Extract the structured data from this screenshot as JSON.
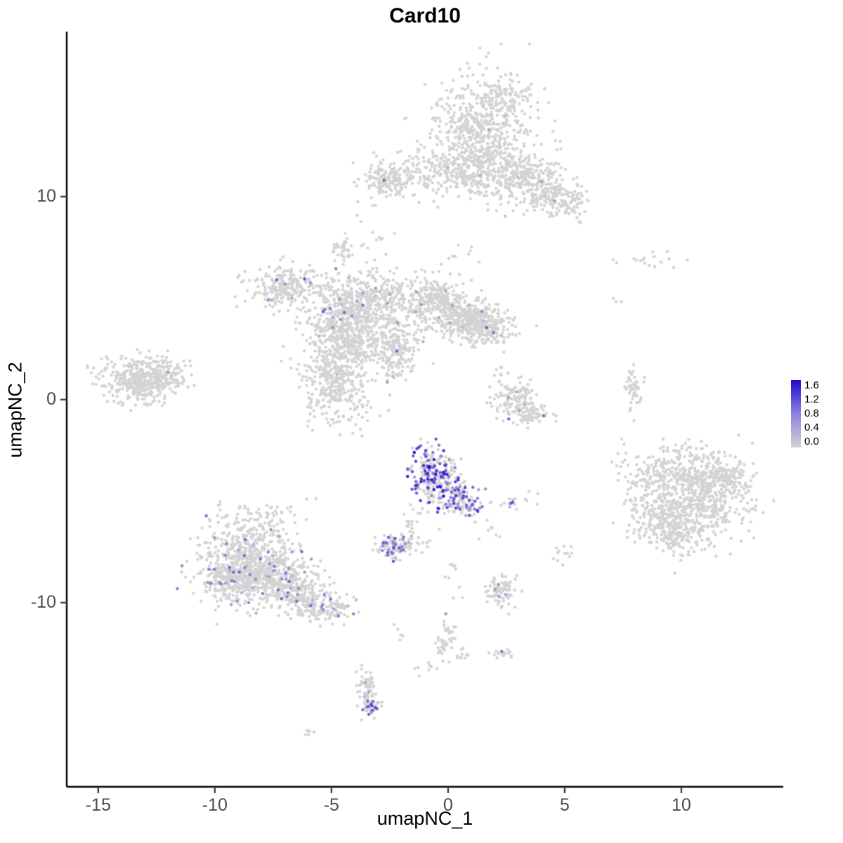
{
  "title": "Card10",
  "chart_data": {
    "type": "scatter",
    "title": "Card10",
    "xlabel": "umapNC_1",
    "ylabel": "umapNC_2",
    "xlim": [
      -16.35,
      14.37
    ],
    "ylim": [
      -19.07,
      18.13
    ],
    "x_ticks": [
      -15,
      -10,
      -5,
      0,
      5,
      10
    ],
    "y_ticks": [
      10,
      0,
      -10
    ],
    "grid": false,
    "legend": {
      "position": "right",
      "min": 0.0,
      "max": 1.6,
      "ticks": [
        1.6,
        1.2,
        0.8,
        0.4,
        0.0
      ],
      "low_color": "#d3d3d3",
      "high_color": "#2209cf"
    },
    "point_radius_px": 2.2,
    "seed": 7,
    "clusters_format": [
      "n",
      "cx",
      "cy",
      "sx",
      "sy",
      "expr_frac",
      "expr_max"
    ],
    "clusters": [
      [
        600,
        1.6,
        13.3,
        1.05,
        1.25,
        0.004,
        0.5
      ],
      [
        350,
        0.6,
        11.2,
        1.55,
        0.55,
        0.004,
        0.5
      ],
      [
        150,
        -2.55,
        10.9,
        0.5,
        0.45,
        0,
        0
      ],
      [
        200,
        3.3,
        10.8,
        0.8,
        0.65,
        0.004,
        0.4
      ],
      [
        120,
        4.4,
        10.0,
        0.5,
        0.55,
        0.008,
        0.4
      ],
      [
        60,
        5.3,
        9.6,
        0.45,
        0.4,
        0,
        0
      ],
      [
        60,
        2.6,
        14.9,
        0.55,
        0.35,
        0,
        0
      ],
      [
        250,
        -6.8,
        5.6,
        0.85,
        0.5,
        0.02,
        0.6
      ],
      [
        300,
        -4.6,
        4.3,
        0.7,
        0.75,
        0.03,
        0.7
      ],
      [
        350,
        -3.0,
        4.8,
        0.85,
        0.85,
        0.02,
        0.6
      ],
      [
        300,
        -0.6,
        4.8,
        0.7,
        0.6,
        0.02,
        0.6
      ],
      [
        250,
        0.8,
        4.0,
        0.5,
        0.5,
        0.015,
        0.5
      ],
      [
        200,
        1.7,
        3.6,
        0.55,
        0.45,
        0.01,
        0.5
      ],
      [
        350,
        -4.9,
        0.9,
        0.8,
        1.0,
        0.003,
        0.4
      ],
      [
        250,
        -4.2,
        2.6,
        0.7,
        0.7,
        0.01,
        0.5
      ],
      [
        120,
        -2.3,
        2.7,
        0.5,
        0.55,
        0.01,
        0.5
      ],
      [
        80,
        -2.2,
        2.0,
        0.45,
        0.65,
        0,
        0
      ],
      [
        40,
        -4.5,
        7.4,
        0.25,
        0.3,
        0,
        0
      ],
      [
        400,
        -13.2,
        1.0,
        0.8,
        0.55,
        0,
        0
      ],
      [
        60,
        -11.9,
        1.2,
        0.45,
        0.3,
        0,
        0
      ],
      [
        50,
        7.95,
        0.4,
        0.18,
        0.55,
        0,
        0
      ],
      [
        18,
        8.6,
        6.8,
        1.0,
        0.25,
        0,
        0
      ],
      [
        3,
        7.4,
        4.8,
        0.15,
        0.15,
        0,
        0
      ],
      [
        130,
        2.9,
        -0.1,
        0.5,
        0.5,
        0.02,
        0.5
      ],
      [
        60,
        3.7,
        -0.75,
        0.45,
        0.28,
        0.02,
        0.5
      ],
      [
        12,
        2.2,
        1.2,
        0.3,
        0.5,
        0,
        0
      ],
      [
        260,
        -0.55,
        -3.8,
        0.5,
        0.75,
        0.38,
        1.5
      ],
      [
        80,
        0.45,
        -4.9,
        0.35,
        0.4,
        0.3,
        1.2
      ],
      [
        40,
        1.0,
        -5.3,
        0.3,
        0.35,
        0.25,
        1.2
      ],
      [
        12,
        2.7,
        -5.1,
        0.2,
        0.15,
        0.2,
        1.0
      ],
      [
        20,
        -1.6,
        -6.1,
        0.2,
        0.4,
        0.05,
        0.6
      ],
      [
        100,
        -2.35,
        -7.2,
        0.4,
        0.3,
        0.28,
        1.1
      ],
      [
        12,
        -1.3,
        -7.1,
        0.25,
        0.12,
        0.05,
        0.5
      ],
      [
        90,
        -8.1,
        -5.9,
        1.0,
        0.45,
        0.02,
        0.7
      ],
      [
        450,
        -8.6,
        -7.8,
        1.0,
        0.8,
        0.04,
        0.9
      ],
      [
        320,
        -7.5,
        -8.8,
        0.9,
        0.7,
        0.04,
        0.9
      ],
      [
        220,
        -9.3,
        -9.0,
        0.7,
        0.6,
        0.04,
        0.8
      ],
      [
        160,
        -6.3,
        -9.6,
        0.6,
        0.5,
        0.04,
        0.8
      ],
      [
        110,
        -5.2,
        -10.3,
        0.55,
        0.35,
        0.05,
        0.8
      ],
      [
        500,
        10.6,
        -4.8,
        1.1,
        1.0,
        0,
        0
      ],
      [
        280,
        9.6,
        -6.2,
        0.8,
        0.7,
        0,
        0
      ],
      [
        180,
        11.6,
        -3.8,
        0.7,
        0.6,
        0,
        0
      ],
      [
        120,
        9.4,
        -3.4,
        0.7,
        0.55,
        0,
        0
      ],
      [
        40,
        8.2,
        -4.4,
        0.45,
        0.8,
        0,
        0
      ],
      [
        10,
        7.5,
        -3.0,
        0.3,
        0.6,
        0,
        0
      ],
      [
        80,
        2.25,
        -9.4,
        0.3,
        0.4,
        0.03,
        0.5
      ],
      [
        12,
        5.0,
        -7.5,
        0.3,
        0.4,
        0,
        0
      ],
      [
        45,
        -0.15,
        -11.8,
        0.22,
        0.5,
        0.02,
        0.5
      ],
      [
        10,
        0.55,
        -12.6,
        0.25,
        0.15,
        0,
        0
      ],
      [
        16,
        2.25,
        -12.5,
        0.25,
        0.2,
        0.05,
        0.6
      ],
      [
        50,
        -3.5,
        -14.2,
        0.22,
        0.4,
        0.05,
        0.6
      ],
      [
        45,
        -3.3,
        -15.1,
        0.22,
        0.35,
        0.3,
        1.2
      ],
      [
        6,
        -5.95,
        -16.35,
        0.18,
        0.12,
        0,
        0
      ],
      [
        10,
        -3.0,
        8.5,
        0.5,
        0.5,
        0,
        0
      ],
      [
        8,
        0.5,
        7.3,
        0.4,
        0.35,
        0,
        0
      ],
      [
        10,
        0.2,
        -8.7,
        0.3,
        0.45,
        0,
        0
      ],
      [
        8,
        1.7,
        -6.5,
        0.25,
        0.25,
        0,
        0
      ],
      [
        5,
        3.5,
        -4.6,
        0.2,
        0.3,
        0,
        0
      ],
      [
        8,
        -1.0,
        -13.2,
        0.3,
        0.3,
        0,
        0
      ],
      [
        5,
        -2.2,
        -11.4,
        0.2,
        0.2,
        0,
        0
      ]
    ],
    "highlights_format": [
      "x",
      "y",
      "value"
    ],
    "highlights": [
      [
        -2.75,
        10.8,
        0.9
      ],
      [
        4.55,
        9.8,
        0.45
      ],
      [
        -7.35,
        5.9,
        0.85
      ],
      [
        -7.0,
        5.7,
        0.5
      ],
      [
        -6.15,
        5.95,
        1.0
      ],
      [
        -5.9,
        5.75,
        0.5
      ],
      [
        -7.7,
        4.9,
        0.5
      ],
      [
        -6.7,
        5.0,
        0.4
      ],
      [
        -5.35,
        4.35,
        1.0
      ],
      [
        -5.05,
        4.5,
        0.7
      ],
      [
        -4.45,
        4.3,
        0.9
      ],
      [
        -4.6,
        3.95,
        0.5
      ],
      [
        -3.65,
        4.65,
        0.8
      ],
      [
        -4.95,
        3.55,
        0.6
      ],
      [
        -2.6,
        4.75,
        0.5
      ],
      [
        -1.35,
        5.3,
        0.4
      ],
      [
        -3.1,
        5.5,
        0.45
      ],
      [
        -2.2,
        2.4,
        0.9
      ],
      [
        -0.4,
        4.05,
        0.4
      ],
      [
        1.45,
        4.35,
        0.6
      ],
      [
        1.65,
        3.55,
        1.0
      ],
      [
        1.95,
        3.3,
        0.8
      ],
      [
        -12.0,
        1.35,
        0.5
      ],
      [
        2.6,
        -0.95,
        0.9
      ],
      [
        4.1,
        -0.8,
        0.8
      ],
      [
        3.05,
        -0.55,
        0.4
      ],
      [
        -0.95,
        -2.8,
        1.1
      ],
      [
        -0.6,
        -2.95,
        1.4
      ],
      [
        -0.35,
        -3.15,
        0.9
      ],
      [
        -0.8,
        -3.3,
        1.6
      ],
      [
        -0.5,
        -3.5,
        1.2
      ],
      [
        -0.95,
        -3.65,
        1.0
      ],
      [
        -1.15,
        -3.9,
        1.3
      ],
      [
        -0.7,
        -3.95,
        1.5
      ],
      [
        -0.3,
        -3.8,
        0.8
      ],
      [
        -0.1,
        -3.5,
        1.0
      ],
      [
        -1.3,
        -4.2,
        0.9
      ],
      [
        -0.85,
        -4.35,
        1.2
      ],
      [
        -0.45,
        -4.3,
        1.4
      ],
      [
        -0.05,
        -4.15,
        0.7
      ],
      [
        -1.35,
        -4.6,
        1.0
      ],
      [
        -0.2,
        -4.75,
        1.6
      ],
      [
        0.15,
        -4.55,
        0.9
      ],
      [
        0.45,
        -4.45,
        1.1
      ],
      [
        0.65,
        -4.8,
        0.8
      ],
      [
        0.9,
        -4.95,
        1.0
      ],
      [
        1.05,
        -5.15,
        0.9
      ],
      [
        1.25,
        -5.45,
        1.2
      ],
      [
        0.3,
        -3.35,
        0.6
      ],
      [
        0.05,
        -2.95,
        0.5
      ],
      [
        -0.65,
        -2.6,
        0.7
      ],
      [
        2.7,
        -5.1,
        1.0
      ],
      [
        1.6,
        -4.4,
        0.5
      ],
      [
        -2.65,
        -7.05,
        0.9
      ],
      [
        -2.35,
        -7.0,
        0.6
      ],
      [
        -2.1,
        -7.3,
        1.0
      ],
      [
        -2.55,
        -7.4,
        0.5
      ],
      [
        -9.5,
        -7.1,
        0.6
      ],
      [
        -8.7,
        -6.9,
        0.8
      ],
      [
        -7.6,
        -6.4,
        0.55
      ],
      [
        -10.25,
        -8.35,
        0.7
      ],
      [
        -9.8,
        -9.0,
        0.5
      ],
      [
        -8.95,
        -8.5,
        0.9
      ],
      [
        -8.25,
        -8.85,
        0.6
      ],
      [
        -7.45,
        -8.2,
        0.8
      ],
      [
        -6.95,
        -8.85,
        0.5
      ],
      [
        -7.95,
        -9.55,
        0.7
      ],
      [
        -7.15,
        -9.8,
        0.9
      ],
      [
        -6.45,
        -9.6,
        0.5
      ],
      [
        -8.55,
        -10.0,
        0.6
      ],
      [
        -9.3,
        -10.1,
        0.4
      ],
      [
        -5.9,
        -10.15,
        0.8
      ],
      [
        -5.35,
        -10.35,
        0.6
      ],
      [
        -4.7,
        -10.65,
        0.7
      ],
      [
        -6.7,
        -7.5,
        0.45
      ],
      [
        -10.3,
        -9.0,
        0.5
      ],
      [
        -6.15,
        -8.5,
        0.45
      ],
      [
        2.15,
        -9.1,
        0.5
      ],
      [
        2.45,
        -9.6,
        0.4
      ],
      [
        2.3,
        -12.4,
        0.8
      ],
      [
        -0.1,
        -10.55,
        0.5
      ],
      [
        -3.45,
        -14.85,
        0.8
      ],
      [
        -3.3,
        -15.0,
        1.2
      ],
      [
        -3.5,
        -15.15,
        0.6
      ],
      [
        -3.25,
        -15.3,
        1.0
      ],
      [
        -3.4,
        -15.5,
        0.9
      ],
      [
        -3.55,
        -13.95,
        0.4
      ]
    ]
  }
}
